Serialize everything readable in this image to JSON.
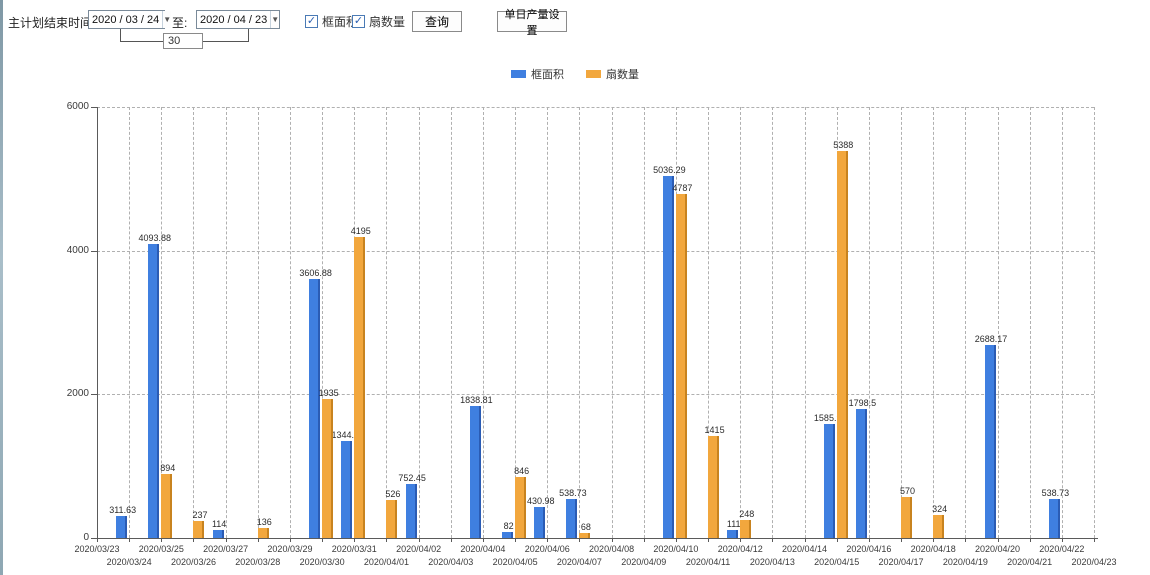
{
  "toolbar": {
    "label": "主计划结束时间:",
    "date_from": "2020 / 03 / 24",
    "to_label": "至:",
    "date_to": "2020 / 04 / 23",
    "interval_value": "30",
    "dropdown_icon": "▼",
    "checkmark_icon": "✓",
    "checkbox_area_label": "框面积",
    "checkbox_area_checked": true,
    "checkbox_fan_label": "扇数量",
    "checkbox_fan_checked": true,
    "query_button": "查询",
    "daily_output_button": "单日产量设置"
  },
  "chart_data": {
    "type": "bar",
    "title": "",
    "xlabel": "",
    "ylabel": "",
    "ylim": [
      0,
      6000
    ],
    "yticks": [
      0,
      2000,
      4000,
      6000
    ],
    "grid": true,
    "legend_position": "top",
    "categories": [
      "2020/03/23",
      "2020/03/24",
      "2020/03/25",
      "2020/03/26",
      "2020/03/27",
      "2020/03/28",
      "2020/03/29",
      "2020/03/30",
      "2020/03/31",
      "2020/04/01",
      "2020/04/02",
      "2020/04/03",
      "2020/04/04",
      "2020/04/05",
      "2020/04/06",
      "2020/04/07",
      "2020/04/08",
      "2020/04/09",
      "2020/04/10",
      "2020/04/11",
      "2020/04/12",
      "2020/04/13",
      "2020/04/14",
      "2020/04/15",
      "2020/04/16",
      "2020/04/17",
      "2020/04/18",
      "2020/04/19",
      "2020/04/20",
      "2020/04/21",
      "2020/04/22",
      "2020/04/23"
    ],
    "series": [
      {
        "name": "框面积",
        "color": "#3f7fe0",
        "edge_color": "#2b5cb4",
        "values": [
          null,
          311.63,
          4093.88,
          null,
          114,
          null,
          null,
          3606.88,
          1344.95,
          null,
          752.45,
          null,
          1838.81,
          82,
          430.98,
          538.73,
          null,
          null,
          5036.29,
          null,
          111,
          null,
          null,
          1585.96,
          1798.5,
          null,
          null,
          null,
          2688.17,
          null,
          538.73,
          null
        ]
      },
      {
        "name": "扇数量",
        "color": "#f2a73d",
        "edge_color": "#c8831f",
        "values": [
          null,
          null,
          894,
          237,
          null,
          136,
          null,
          1935,
          4195,
          526,
          null,
          null,
          null,
          846,
          null,
          68,
          null,
          null,
          4787,
          1415,
          248,
          null,
          null,
          5388,
          null,
          570,
          324,
          null,
          null,
          null,
          null,
          null
        ]
      }
    ]
  }
}
